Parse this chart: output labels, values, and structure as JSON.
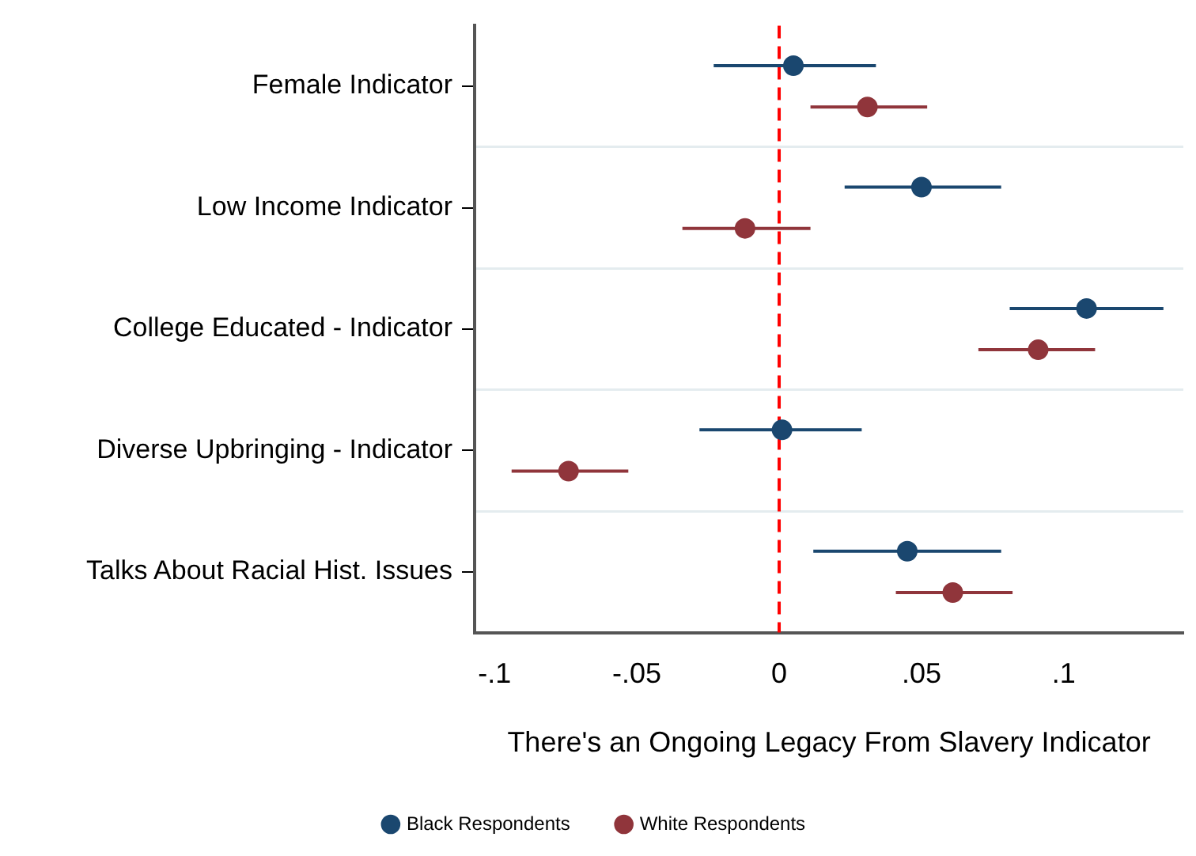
{
  "chart_data": {
    "type": "scatter",
    "orientation": "horizontal",
    "xlabel": "There's an Ongoing Legacy From Slavery Indicator",
    "categories": [
      "Female Indicator",
      "Low Income Indicator",
      "College Educated - Indicator",
      "Diverse Upbringing - Indicator",
      "Talks About Racial Hist. Issues"
    ],
    "series": [
      {
        "name": "Black Respondents",
        "color": "#1a476f",
        "values": [
          0.005,
          0.05,
          0.108,
          0.001,
          0.045
        ],
        "errors": [
          [
            -0.023,
            0.034
          ],
          [
            0.023,
            0.078
          ],
          [
            0.081,
            0.135
          ],
          [
            -0.028,
            0.029
          ],
          [
            0.012,
            0.078
          ]
        ]
      },
      {
        "name": "White Respondents",
        "color": "#90353b",
        "values": [
          0.031,
          -0.012,
          0.091,
          -0.074,
          0.061
        ],
        "errors": [
          [
            0.011,
            0.052
          ],
          [
            -0.034,
            0.011
          ],
          [
            0.07,
            0.111
          ],
          [
            -0.094,
            -0.053
          ],
          [
            0.041,
            0.082
          ]
        ]
      }
    ],
    "xlim": [
      -0.107,
      0.142
    ],
    "xticks": [
      {
        "value": -0.1,
        "label": "-.1"
      },
      {
        "value": -0.05,
        "label": "-.05"
      },
      0,
      {
        "value": 0.05,
        "label": ".05"
      },
      {
        "value": 0.1,
        "label": ".1"
      }
    ],
    "ref_lines": [
      {
        "axis": "x",
        "value": 0,
        "color": "#ff0000",
        "line_style": "dashed"
      }
    ],
    "grid": "y",
    "legend": "bottom",
    "marker": "circle"
  }
}
